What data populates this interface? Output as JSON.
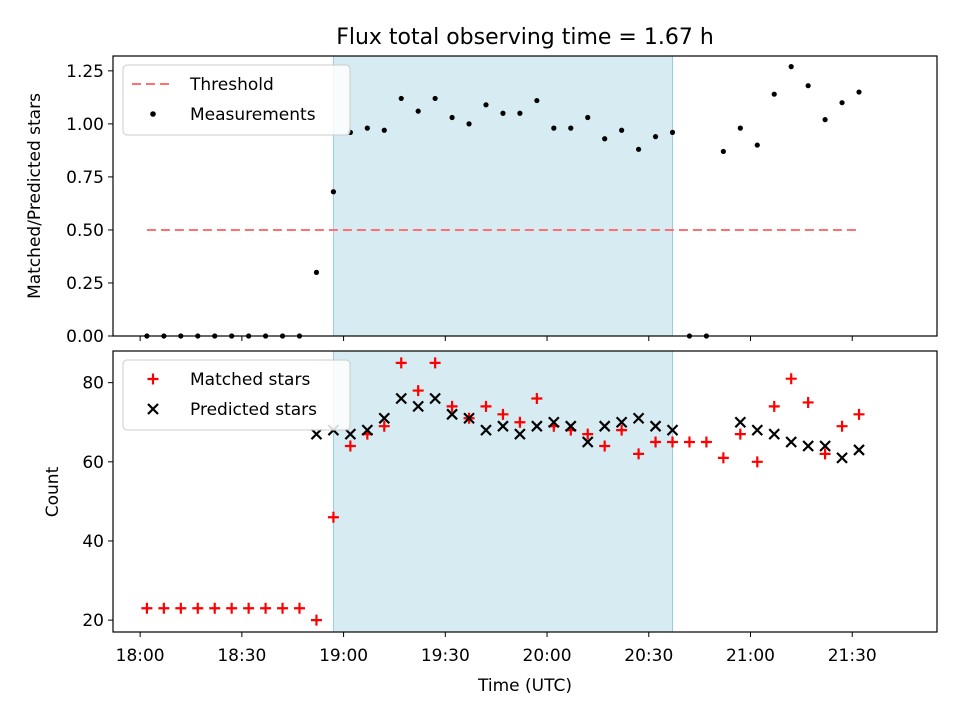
{
  "title": "Flux total observing time = 1.67 h",
  "chart_data": [
    {
      "type": "scatter",
      "ylabel": "Matched/Predicted stars",
      "xlabel": "",
      "ylim": [
        0.0,
        1.32
      ],
      "xlim": [
        "17:52",
        "21:55"
      ],
      "y_ticks": [
        "0.00",
        "0.25",
        "0.50",
        "0.75",
        "1.00",
        "1.25"
      ],
      "grid": false,
      "legend_position": "top-left",
      "highlight_span": [
        "18:57",
        "20:37"
      ],
      "threshold": {
        "name": "Threshold",
        "value": 0.5,
        "x_start": "18:02",
        "x_end": "21:32",
        "color": "#ff7070"
      },
      "series": [
        {
          "name": "Measurements",
          "color": "#000000",
          "x": [
            "18:02",
            "18:07",
            "18:12",
            "18:17",
            "18:22",
            "18:27",
            "18:32",
            "18:37",
            "18:42",
            "18:47",
            "18:52",
            "18:57",
            "19:02",
            "19:07",
            "19:12",
            "19:17",
            "19:22",
            "19:27",
            "19:32",
            "19:37",
            "19:42",
            "19:47",
            "19:52",
            "19:57",
            "20:02",
            "20:07",
            "20:12",
            "20:17",
            "20:22",
            "20:27",
            "20:32",
            "20:37",
            "20:42",
            "20:47",
            "20:52",
            "20:57",
            "21:02",
            "21:07",
            "21:12",
            "21:17",
            "21:22",
            "21:27",
            "21:32"
          ],
          "y": [
            0.0,
            0.0,
            0.0,
            0.0,
            0.0,
            0.0,
            0.0,
            0.0,
            0.0,
            0.0,
            0.3,
            0.68,
            0.96,
            0.98,
            0.97,
            1.12,
            1.06,
            1.12,
            1.03,
            1.0,
            1.09,
            1.05,
            1.05,
            1.11,
            0.98,
            0.98,
            1.03,
            0.93,
            0.97,
            0.88,
            0.94,
            0.96,
            0.0,
            0.0,
            0.87,
            0.98,
            0.9,
            1.14,
            1.27,
            1.18,
            1.02,
            1.1,
            1.15
          ]
        }
      ]
    },
    {
      "type": "scatter",
      "ylabel": "Count",
      "xlabel": "Time (UTC)",
      "ylim": [
        17,
        88
      ],
      "xlim": [
        "17:52",
        "21:55"
      ],
      "y_ticks": [
        "20",
        "40",
        "60",
        "80"
      ],
      "x_ticks": [
        "18:00",
        "18:30",
        "19:00",
        "19:30",
        "20:00",
        "20:30",
        "21:00",
        "21:30"
      ],
      "grid": false,
      "legend_position": "top-left",
      "highlight_span": [
        "18:57",
        "20:37"
      ],
      "series": [
        {
          "name": "Matched stars",
          "marker": "plus",
          "color": "#ff0000",
          "x": [
            "18:02",
            "18:07",
            "18:12",
            "18:17",
            "18:22",
            "18:27",
            "18:32",
            "18:37",
            "18:42",
            "18:47",
            "18:52",
            "18:57",
            "19:02",
            "19:07",
            "19:12",
            "19:17",
            "19:22",
            "19:27",
            "19:32",
            "19:37",
            "19:42",
            "19:47",
            "19:52",
            "19:57",
            "20:02",
            "20:07",
            "20:12",
            "20:17",
            "20:22",
            "20:27",
            "20:32",
            "20:37",
            "20:42",
            "20:47",
            "20:52",
            "20:57",
            "21:02",
            "21:07",
            "21:12",
            "21:17",
            "21:22",
            "21:27",
            "21:32"
          ],
          "y": [
            23,
            23,
            23,
            23,
            23,
            23,
            23,
            23,
            23,
            23,
            20,
            46,
            64,
            67,
            69,
            85,
            78,
            85,
            74,
            71,
            74,
            72,
            70,
            76,
            69,
            68,
            67,
            64,
            68,
            62,
            65,
            65,
            65,
            65,
            61,
            67,
            60,
            74,
            81,
            75,
            62,
            69,
            72
          ]
        },
        {
          "name": "Predicted stars",
          "marker": "x",
          "color": "#000000",
          "x": [
            "18:52",
            "18:57",
            "19:02",
            "19:07",
            "19:12",
            "19:17",
            "19:22",
            "19:27",
            "19:32",
            "19:37",
            "19:42",
            "19:47",
            "19:52",
            "19:57",
            "20:02",
            "20:07",
            "20:12",
            "20:17",
            "20:22",
            "20:27",
            "20:32",
            "20:37",
            "20:57",
            "21:02",
            "21:07",
            "21:12",
            "21:17",
            "21:22",
            "21:27",
            "21:32"
          ],
          "y": [
            67,
            68,
            67,
            68,
            71,
            76,
            74,
            76,
            72,
            71,
            68,
            69,
            67,
            69,
            70,
            69,
            65,
            69,
            70,
            71,
            69,
            68,
            70,
            68,
            67,
            65,
            64,
            64,
            61,
            63
          ]
        }
      ]
    }
  ]
}
